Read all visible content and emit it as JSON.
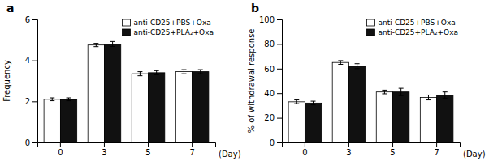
{
  "chart_data": [
    {
      "type": "bar",
      "title": "a",
      "y_label": "Frequency",
      "x_label": "(Day)",
      "categories": [
        "0",
        "3",
        "5",
        "7"
      ],
      "series": [
        {
          "name": "anti-CD25+PBS+Oxa",
          "color": "#ffffff",
          "values": [
            2.1,
            4.75,
            3.35,
            3.45
          ],
          "errors": [
            0.07,
            0.08,
            0.1,
            0.1
          ]
        },
        {
          "name": "anti-CD25+PLA₂+Oxa",
          "color": "#111111",
          "values": [
            2.1,
            4.8,
            3.4,
            3.45
          ],
          "errors": [
            0.07,
            0.12,
            0.1,
            0.1
          ]
        }
      ],
      "ylim": [
        0,
        6
      ],
      "yticks": [
        0,
        2,
        4,
        6
      ],
      "grid": false,
      "legend": "upper right"
    },
    {
      "type": "bar",
      "title": "b",
      "y_label": "% of withdrawal response",
      "x_label": "(Day)",
      "categories": [
        "0",
        "3",
        "5",
        "7"
      ],
      "series": [
        {
          "name": "anti-CD25+PBS+Oxa",
          "color": "#ffffff",
          "values": [
            33.0,
            65.0,
            41.0,
            36.5
          ],
          "errors": [
            1.5,
            1.5,
            1.5,
            2.0
          ]
        },
        {
          "name": "anti-CD25+PLA₂+Oxa",
          "color": "#111111",
          "values": [
            32.0,
            62.0,
            41.0,
            38.5
          ],
          "errors": [
            1.5,
            2.0,
            3.0,
            2.5
          ]
        }
      ],
      "ylim": [
        0,
        100
      ],
      "yticks": [
        0,
        20,
        40,
        60,
        80,
        100
      ],
      "grid": false,
      "legend": "upper right"
    }
  ]
}
